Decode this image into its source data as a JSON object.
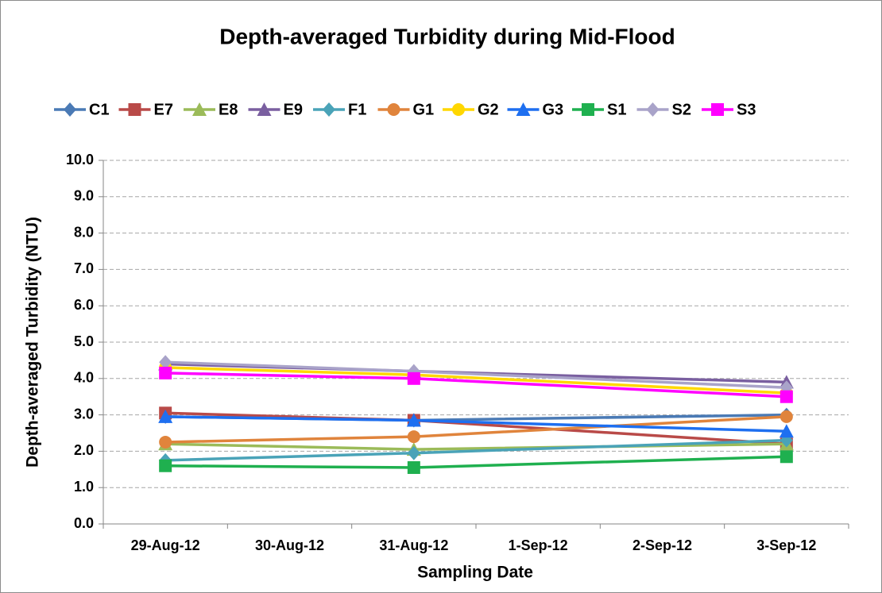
{
  "chart_data": {
    "type": "line",
    "title": "Depth-averaged Turbidity during Mid-Flood",
    "x_label": "Sampling Date",
    "y_label": "Depth-averaged Turbidity (NTU)",
    "categories": [
      "29-Aug-12",
      "30-Aug-12",
      "31-Aug-12",
      "1-Sep-12",
      "2-Sep-12",
      "3-Sep-12"
    ],
    "ylim": [
      0,
      10
    ],
    "yticks": [
      {
        "value": 0,
        "label": "0.0"
      },
      {
        "value": 1,
        "label": "1.0"
      },
      {
        "value": 2,
        "label": "2.0"
      },
      {
        "value": 3,
        "label": "3.0"
      },
      {
        "value": 4,
        "label": "4.0"
      },
      {
        "value": 5,
        "label": "5.0"
      },
      {
        "value": 6,
        "label": "6.0"
      },
      {
        "value": 7,
        "label": "7.0"
      },
      {
        "value": 8,
        "label": "8.0"
      },
      {
        "value": 9,
        "label": "9.0"
      },
      {
        "value": 10,
        "label": "10.0"
      }
    ],
    "grid": true,
    "legend": "top",
    "series": [
      {
        "name": "C1",
        "color": "#4a7ab5",
        "marker": "diamond",
        "x": [
          "29-Aug-12",
          "31-Aug-12",
          "3-Sep-12"
        ],
        "values": [
          2.95,
          2.85,
          3.0
        ]
      },
      {
        "name": "E7",
        "color": "#b94a48",
        "marker": "square",
        "x": [
          "29-Aug-12",
          "31-Aug-12",
          "3-Sep-12"
        ],
        "values": [
          3.05,
          2.85,
          2.2
        ]
      },
      {
        "name": "E8",
        "color": "#9bbb59",
        "marker": "triangle",
        "x": [
          "29-Aug-12",
          "31-Aug-12",
          "3-Sep-12"
        ],
        "values": [
          2.2,
          2.05,
          2.2
        ]
      },
      {
        "name": "E9",
        "color": "#7a5fa0",
        "marker": "triangle",
        "x": [
          "29-Aug-12",
          "31-Aug-12",
          "3-Sep-12"
        ],
        "values": [
          4.4,
          4.2,
          3.9
        ]
      },
      {
        "name": "F1",
        "color": "#4aa3b8",
        "marker": "diamond",
        "x": [
          "29-Aug-12",
          "31-Aug-12",
          "3-Sep-12"
        ],
        "values": [
          1.75,
          1.95,
          2.3
        ]
      },
      {
        "name": "G1",
        "color": "#e0843c",
        "marker": "circle",
        "x": [
          "29-Aug-12",
          "31-Aug-12",
          "3-Sep-12"
        ],
        "values": [
          2.25,
          2.4,
          2.95
        ]
      },
      {
        "name": "G2",
        "color": "#ffd700",
        "marker": "circle",
        "x": [
          "29-Aug-12",
          "31-Aug-12",
          "3-Sep-12"
        ],
        "values": [
          4.3,
          4.1,
          3.6
        ]
      },
      {
        "name": "G3",
        "color": "#1e6ff0",
        "marker": "triangle",
        "x": [
          "29-Aug-12",
          "31-Aug-12",
          "3-Sep-12"
        ],
        "values": [
          2.95,
          2.85,
          2.55
        ]
      },
      {
        "name": "S1",
        "color": "#1fb04f",
        "marker": "square",
        "x": [
          "29-Aug-12",
          "31-Aug-12",
          "3-Sep-12"
        ],
        "values": [
          1.6,
          1.55,
          1.85
        ]
      },
      {
        "name": "S2",
        "color": "#a9a3c9",
        "marker": "diamond",
        "x": [
          "29-Aug-12",
          "31-Aug-12",
          "3-Sep-12"
        ],
        "values": [
          4.45,
          4.2,
          3.75
        ]
      },
      {
        "name": "S3",
        "color": "#ff00ff",
        "marker": "square",
        "x": [
          "29-Aug-12",
          "31-Aug-12",
          "3-Sep-12"
        ],
        "values": [
          4.15,
          4.0,
          3.5
        ]
      }
    ]
  }
}
